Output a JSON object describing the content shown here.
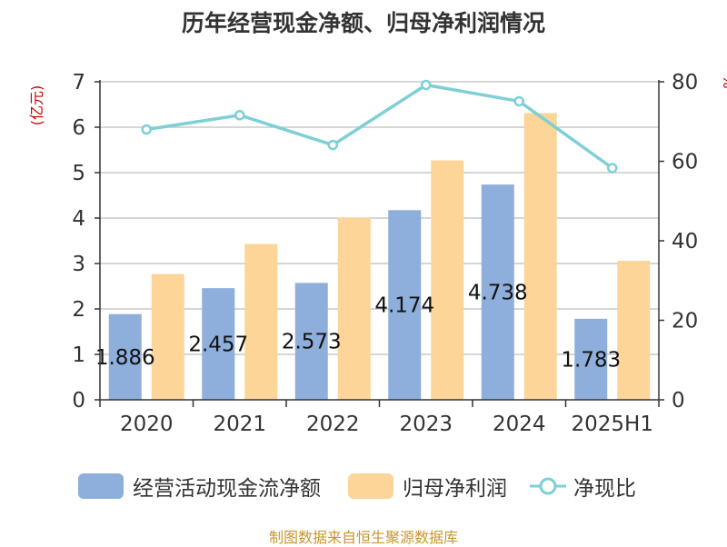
{
  "title": "历年经营现金净额、归母净利润情况",
  "source": "制图数据来自恒生聚源数据库",
  "chart_data": {
    "type": "bar",
    "categories": [
      "2020",
      "2021",
      "2022",
      "2023",
      "2024",
      "2025H1"
    ],
    "left_axis": {
      "label": "(亿元)",
      "ylim": [
        0,
        7
      ],
      "ticks": [
        "0",
        "1",
        "2",
        "3",
        "4",
        "5",
        "6",
        "7"
      ]
    },
    "right_axis": {
      "label": "%",
      "ylim": [
        0,
        80
      ],
      "ticks": [
        "0",
        "20",
        "40",
        "60",
        "80"
      ]
    },
    "series": [
      {
        "name": "经营活动现金流净额",
        "type": "bar",
        "axis": "left",
        "color": "#8eaedb",
        "values": [
          1.886,
          2.457,
          2.573,
          4.174,
          4.738,
          1.783
        ],
        "labels": [
          "1.886",
          "2.457",
          "2.573",
          "4.174",
          "4.738",
          "1.783"
        ]
      },
      {
        "name": "归母净利润",
        "type": "bar",
        "axis": "left",
        "color": "#fdd598",
        "values": [
          2.77,
          3.43,
          4.01,
          5.27,
          6.31,
          3.06
        ]
      },
      {
        "name": "净现比",
        "type": "line",
        "axis": "right",
        "color": "#7fcfd6",
        "values": [
          68.0,
          71.6,
          64.1,
          79.2,
          75.1,
          58.3
        ]
      }
    ],
    "grid": true,
    "legend_position": "bottom"
  }
}
